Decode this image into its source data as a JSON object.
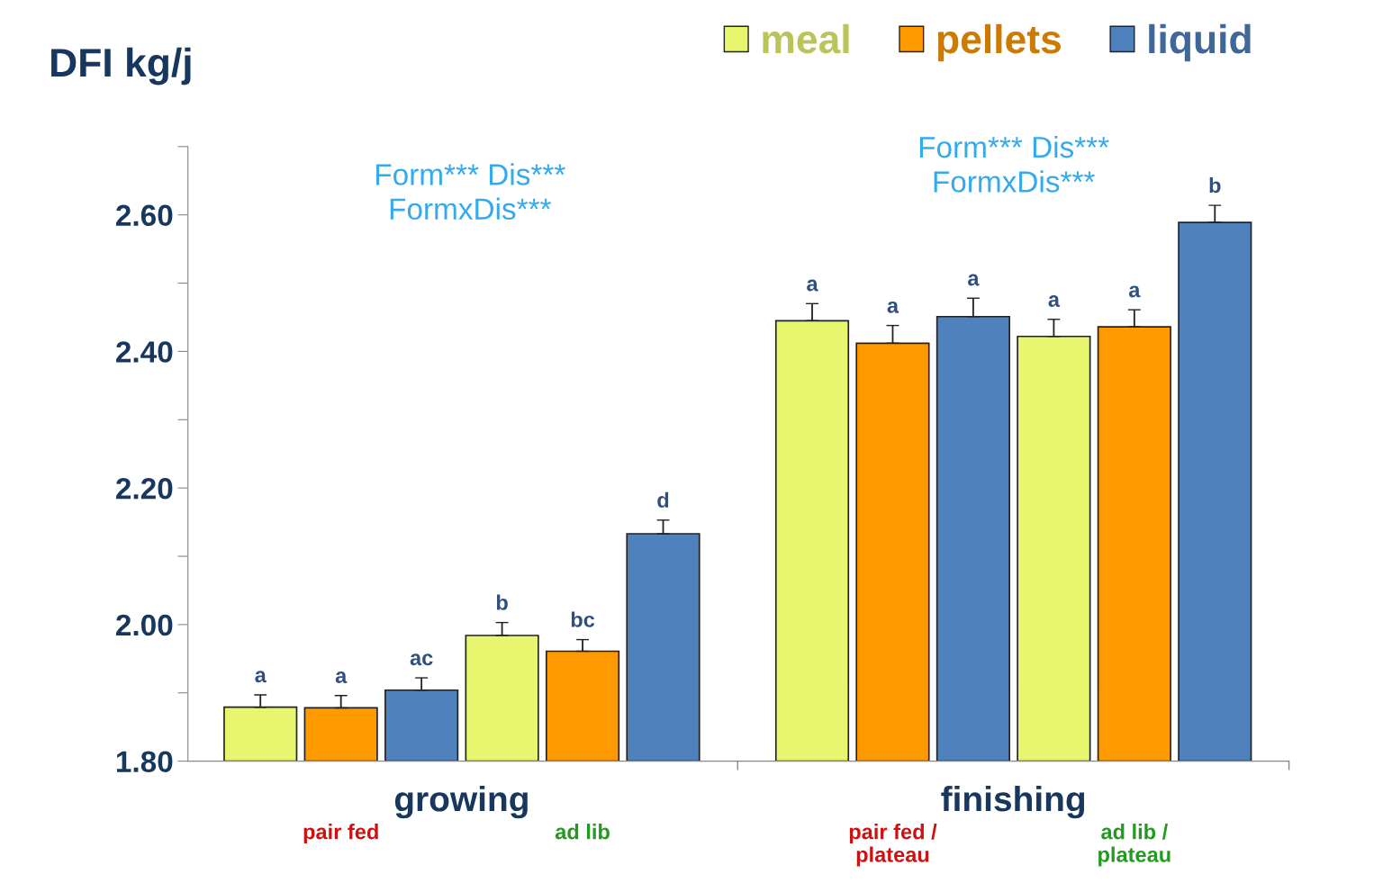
{
  "chart_data": {
    "type": "bar",
    "title": "DFI kg/j",
    "categories": [
      null,
      "pair fed",
      null,
      null,
      "ad lib",
      null,
      null,
      "pair fed /\nplateau",
      null,
      null,
      "ad lib /\nplateau",
      null
    ],
    "series": [
      {
        "name": "meal",
        "color": "#e8f56e",
        "values": [
          1.879,
          null,
          null,
          1.984,
          null,
          null,
          2.445,
          null,
          null,
          2.422,
          null,
          null
        ],
        "errors": [
          [
            1.879,
            1.897
          ],
          null,
          null,
          [
            1.984,
            2.003
          ],
          null,
          null,
          [
            2.445,
            2.47
          ],
          null,
          null,
          [
            2.422,
            2.447
          ],
          null,
          null
        ],
        "value_labels": [
          "a",
          null,
          null,
          "b",
          null,
          null,
          "a",
          null,
          null,
          "a",
          null,
          null
        ]
      },
      {
        "name": "pellets",
        "color": "#ff9900",
        "values": [
          null,
          1.878,
          null,
          null,
          1.961,
          null,
          null,
          2.412,
          null,
          null,
          2.436,
          null
        ],
        "errors": [
          null,
          [
            1.878,
            1.896
          ],
          null,
          null,
          [
            1.961,
            1.978
          ],
          null,
          null,
          [
            2.412,
            2.438
          ],
          null,
          null,
          [
            2.436,
            2.461
          ],
          null
        ],
        "value_labels": [
          null,
          "a",
          null,
          null,
          "bc",
          null,
          null,
          "a",
          null,
          null,
          "a",
          null
        ]
      },
      {
        "name": "liquid",
        "color": "#4f81bd",
        "values": [
          null,
          null,
          1.904,
          null,
          null,
          2.133,
          null,
          null,
          2.451,
          null,
          null,
          2.589
        ],
        "errors": [
          null,
          null,
          [
            1.904,
            1.922
          ],
          null,
          null,
          [
            2.133,
            2.153
          ],
          null,
          null,
          [
            2.451,
            2.478
          ],
          null,
          null,
          [
            2.589,
            2.614
          ]
        ],
        "value_labels": [
          null,
          null,
          "ac",
          null,
          null,
          "d",
          null,
          null,
          "a",
          null,
          null,
          "b"
        ]
      }
    ],
    "ylim": [
      1.8,
      2.7
    ],
    "yticks": [
      {
        "value": 1.8,
        "label": "1.80"
      },
      {
        "value": 1.9,
        "label": null
      },
      {
        "value": 2.0,
        "label": "2.00"
      },
      {
        "value": 2.1,
        "label": null
      },
      {
        "value": 2.2,
        "label": "2.20"
      },
      {
        "value": 2.3,
        "label": null
      },
      {
        "value": 2.4,
        "label": "2.40"
      },
      {
        "value": 2.5,
        "label": null
      },
      {
        "value": 2.6,
        "label": "2.60"
      },
      {
        "value": 2.7,
        "label": null
      }
    ],
    "annotations": [
      "Form*** Dis***\nFormxDis***",
      "Form*** Dis***\nFormxDis***",
      "growing",
      "finishing"
    ],
    "grid": false,
    "legend": "top right"
  }
}
